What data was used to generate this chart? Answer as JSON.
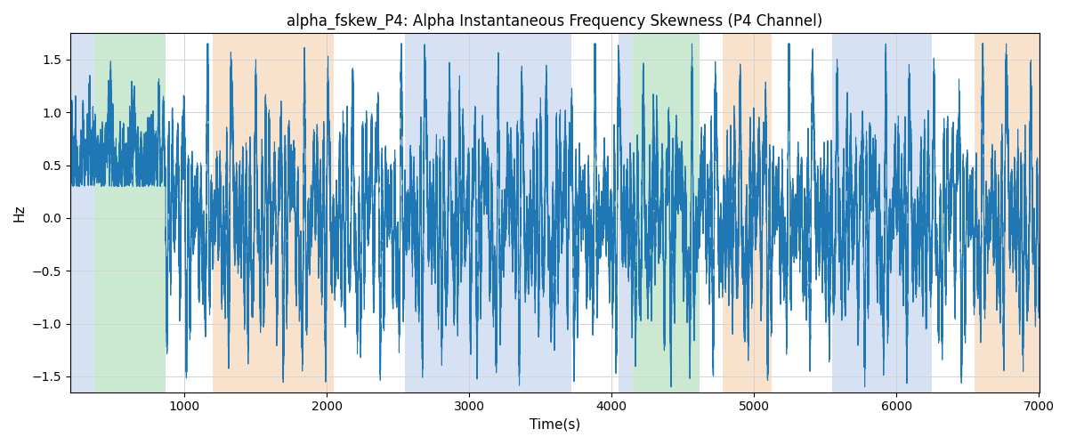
{
  "title": "alpha_fskew_P4: Alpha Instantaneous Frequency Skewness (P4 Channel)",
  "xlabel": "Time(s)",
  "ylabel": "Hz",
  "xlim": [
    200,
    7000
  ],
  "ylim": [
    -1.65,
    1.75
  ],
  "yticks": [
    -1.5,
    -1.0,
    -0.5,
    0.0,
    0.5,
    1.0,
    1.5
  ],
  "xticks": [
    1000,
    2000,
    3000,
    4000,
    5000,
    6000,
    7000
  ],
  "line_color": "#1f77b4",
  "line_width": 0.8,
  "bg_bands": [
    {
      "xstart": 200,
      "xend": 370,
      "color": "#aec6e8",
      "alpha": 0.5
    },
    {
      "xstart": 370,
      "xend": 870,
      "color": "#98d4a3",
      "alpha": 0.5
    },
    {
      "xstart": 1200,
      "xend": 2050,
      "color": "#f5c799",
      "alpha": 0.5
    },
    {
      "xstart": 2550,
      "xend": 3720,
      "color": "#aec6e8",
      "alpha": 0.5
    },
    {
      "xstart": 4050,
      "xend": 4150,
      "color": "#aec6e8",
      "alpha": 0.5
    },
    {
      "xstart": 4150,
      "xend": 4620,
      "color": "#98d4a3",
      "alpha": 0.5
    },
    {
      "xstart": 4780,
      "xend": 5120,
      "color": "#f5c799",
      "alpha": 0.5
    },
    {
      "xstart": 5550,
      "xend": 6250,
      "color": "#aec6e8",
      "alpha": 0.5
    },
    {
      "xstart": 6550,
      "xend": 7000,
      "color": "#f5c799",
      "alpha": 0.5
    }
  ],
  "seed": 12345,
  "n_points": 68000,
  "signal_xstart": 200,
  "signal_xend": 7000
}
